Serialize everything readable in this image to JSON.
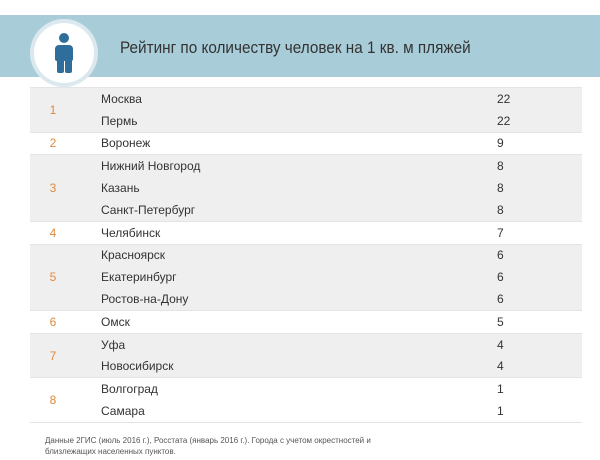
{
  "title": "Рейтинг по количеству человек на 1 кв. м пляжей",
  "groups": [
    {
      "rank": "1",
      "items": [
        {
          "city": "Москва",
          "value": "22"
        },
        {
          "city": "Пермь",
          "value": "22"
        }
      ]
    },
    {
      "rank": "2",
      "items": [
        {
          "city": "Воронеж",
          "value": "9"
        }
      ]
    },
    {
      "rank": "3",
      "items": [
        {
          "city": "Нижний Новгород",
          "value": "8"
        },
        {
          "city": "Казань",
          "value": "8"
        },
        {
          "city": "Санкт-Петербург",
          "value": "8"
        }
      ]
    },
    {
      "rank": "4",
      "items": [
        {
          "city": "Челябинск",
          "value": "7"
        }
      ]
    },
    {
      "rank": "5",
      "items": [
        {
          "city": "Красноярск",
          "value": "6"
        },
        {
          "city": "Екатеринбург",
          "value": "6"
        },
        {
          "city": "Ростов-на-Дону",
          "value": "6"
        }
      ]
    },
    {
      "rank": "6",
      "items": [
        {
          "city": "Омск",
          "value": "5"
        }
      ]
    },
    {
      "rank": "7",
      "items": [
        {
          "city": "Уфа",
          "value": "4"
        },
        {
          "city": "Новосибирск",
          "value": "4"
        }
      ]
    },
    {
      "rank": "8",
      "items": [
        {
          "city": "Волгоград",
          "value": "1"
        },
        {
          "city": "Самара",
          "value": "1"
        }
      ]
    }
  ],
  "footnote": "Данные 2ГИС (июль 2016 г.), Росстата (январь 2016 г.). Города с учетом окрестностей и близлежащих населенных пунктов.",
  "colors": {
    "header": "#a9ccd9",
    "rank": "#e08a3c",
    "icon": "#2f6e9a",
    "shaded_row": "#efefef"
  },
  "icon": "person-icon"
}
